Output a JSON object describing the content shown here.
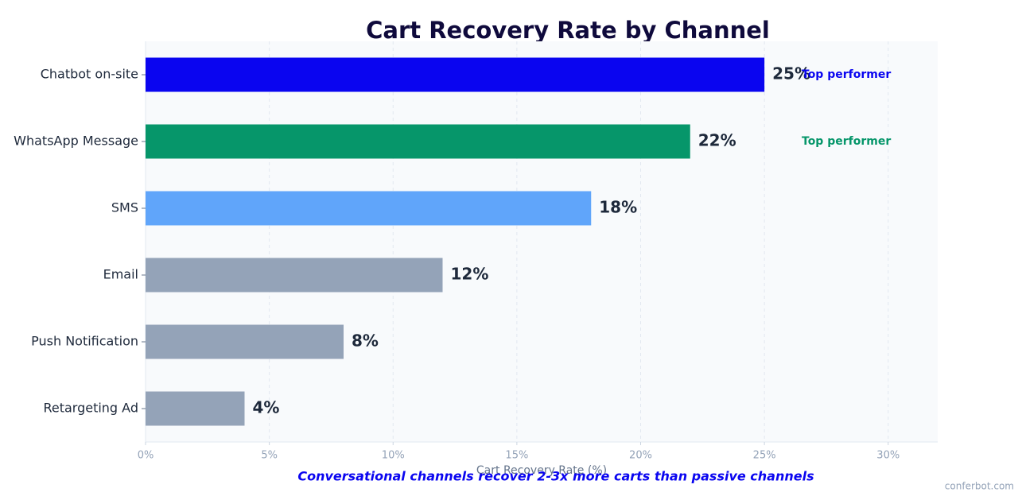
{
  "chart_data": {
    "type": "hbar",
    "title": "Cart Recovery Rate by Channel",
    "xlabel": "Cart Recovery Rate (%)",
    "footnote": "Conversational channels recover 2-3x more carts than passive channels",
    "watermark": "conferbot.com",
    "categories": [
      "Chatbot on-site",
      "WhatsApp Message",
      "SMS",
      "Email",
      "Push Notification",
      "Retargeting Ad"
    ],
    "values": [
      25,
      22,
      18,
      12,
      8,
      4
    ],
    "value_labels": [
      "25%",
      "22%",
      "18%",
      "12%",
      "8%",
      "4%"
    ],
    "colors": [
      "#0a05f0",
      "#06966a",
      "#60a5fa",
      "#94a3b8",
      "#94a3b8",
      "#94a3b8"
    ],
    "bar_notes": [
      "Top performer",
      "Top performer",
      null,
      null,
      null,
      null
    ],
    "xlim": [
      0,
      32
    ],
    "xticks": [
      {
        "value": 0,
        "label": "0%"
      },
      {
        "value": 5,
        "label": "5%"
      },
      {
        "value": 10,
        "label": "10%"
      },
      {
        "value": 15,
        "label": "15%"
      },
      {
        "value": 20,
        "label": "20%"
      },
      {
        "value": 25,
        "label": "25%"
      },
      {
        "value": 30,
        "label": "30%"
      }
    ],
    "grid": true
  }
}
